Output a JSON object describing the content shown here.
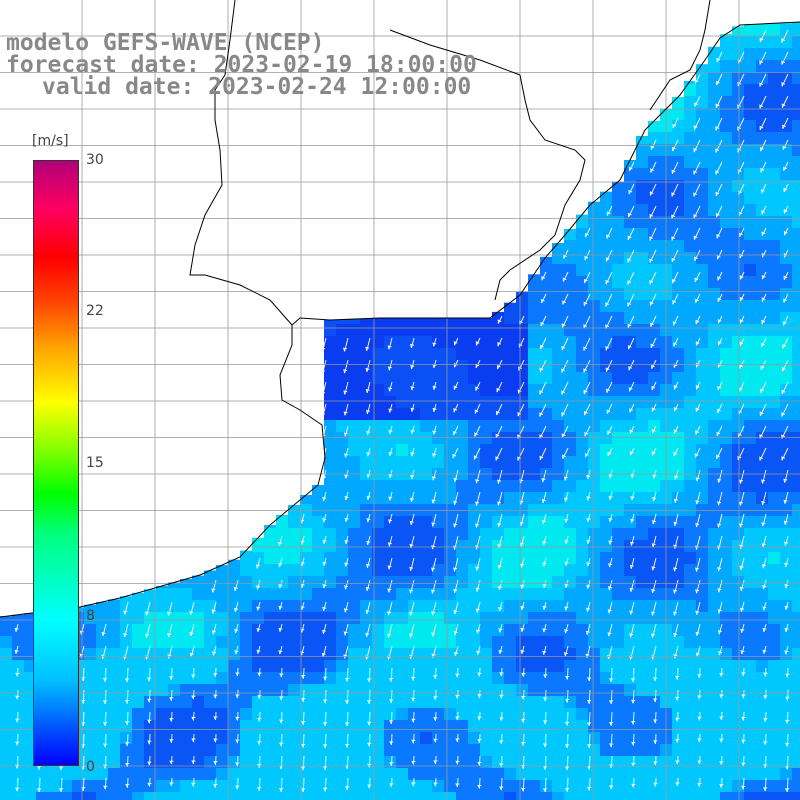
{
  "title": {
    "line1": "modelo GEFS-WAVE (NCEP)",
    "line2": "forecast date: 2023-02-19 18:00:00",
    "line3": "valid date: 2023-02-24 12:00:00"
  },
  "colorbar": {
    "unit": "[m/s]",
    "ticks": [
      "30",
      "22",
      "15",
      "8",
      "0"
    ],
    "colors": [
      "#0000ff",
      "#00bfff",
      "#00ffff",
      "#00ff80",
      "#00ff00",
      "#ffff00",
      "#ffa500",
      "#ff0000",
      "#b0007a"
    ]
  },
  "map": {
    "region": "South Atlantic / Rio de la Plata",
    "variable": "wind speed",
    "vector_direction": "mostly southward (from north/northeast)",
    "land_color": "#ffffff",
    "coast_color": "#000000",
    "grid_color": "#999999"
  }
}
